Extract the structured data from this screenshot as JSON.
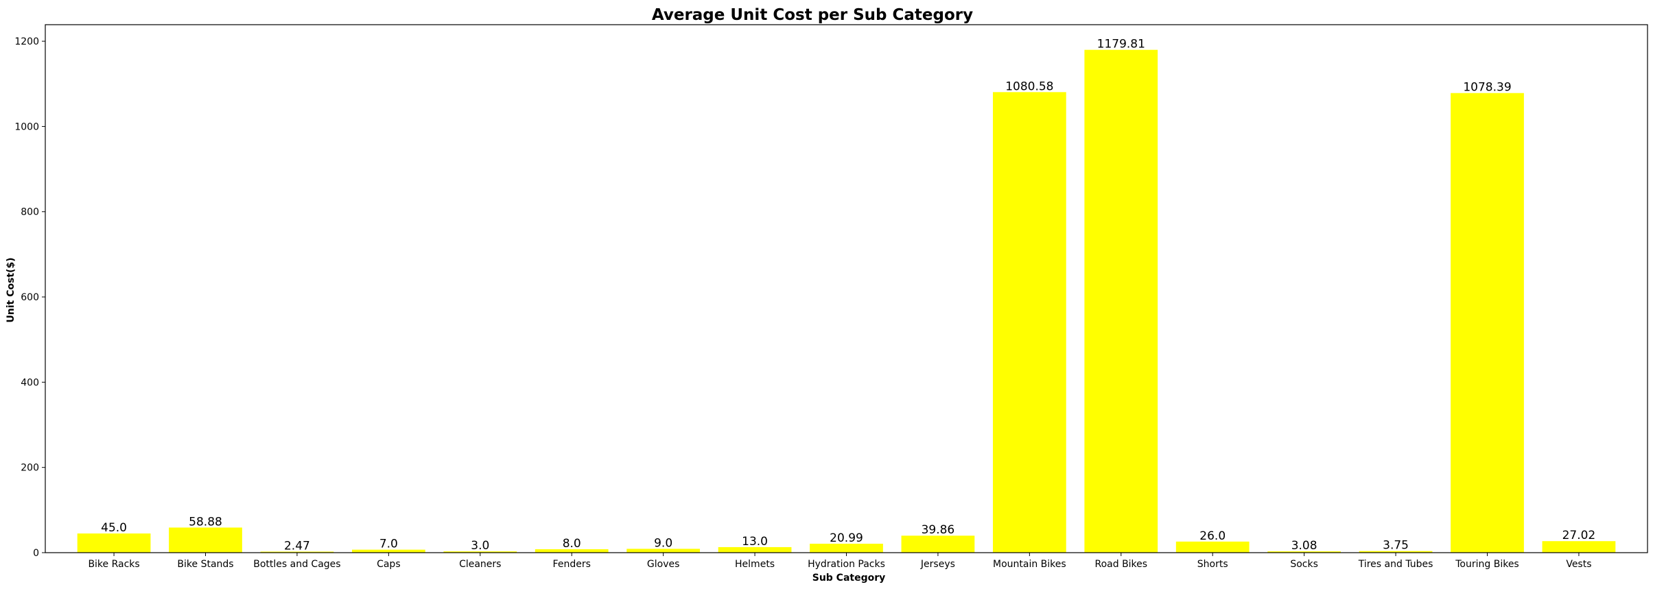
{
  "chart_data": {
    "type": "bar",
    "title": "Average Unit Cost per Sub Category",
    "xlabel": "Sub Category",
    "ylabel": "Unit Cost($)",
    "categories": [
      "Bike Racks",
      "Bike Stands",
      "Bottles and Cages",
      "Caps",
      "Cleaners",
      "Fenders",
      "Gloves",
      "Helmets",
      "Hydration Packs",
      "Jerseys",
      "Mountain Bikes",
      "Road Bikes",
      "Shorts",
      "Socks",
      "Tires and Tubes",
      "Touring Bikes",
      "Vests"
    ],
    "values": [
      45.0,
      58.88,
      2.47,
      7.0,
      3.0,
      8.0,
      9.0,
      13.0,
      20.99,
      39.86,
      1080.58,
      1179.81,
      26.0,
      3.08,
      3.75,
      1078.39,
      27.02
    ],
    "value_labels": [
      "45.0",
      "58.88",
      "2.47",
      "7.0",
      "3.0",
      "8.0",
      "9.0",
      "13.0",
      "20.99",
      "39.86",
      "1080.58",
      "1179.81",
      "26.0",
      "3.08",
      "3.75",
      "1078.39",
      "27.02"
    ],
    "yticks": [
      0,
      200,
      400,
      600,
      800,
      1000,
      1200
    ],
    "ylim": [
      0,
      1238.8
    ],
    "bar_color": "#ffff00",
    "grid": false,
    "legend": "none"
  }
}
